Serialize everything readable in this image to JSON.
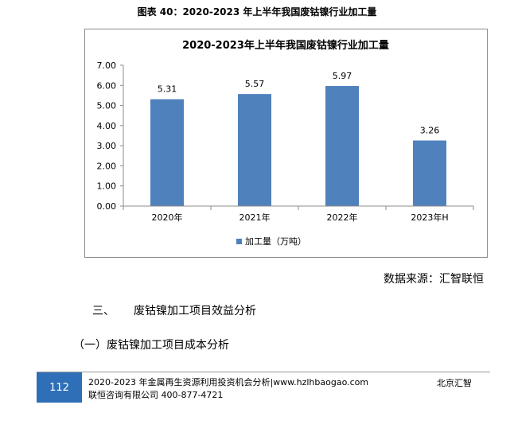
{
  "figure_caption": "图表 40：2020-2023 年上半年我国废钴镍行业加工量",
  "chart_data": {
    "type": "bar",
    "title": "2020-2023年上半年我国废钴镍行业加工量",
    "categories": [
      "2020年",
      "2021年",
      "2022年",
      "2023年H"
    ],
    "series": [
      {
        "name": "加工量（万吨）",
        "values": [
          5.31,
          5.57,
          5.97,
          3.26
        ]
      }
    ],
    "data_labels": [
      "5.31",
      "5.57",
      "5.97",
      "3.26"
    ],
    "y_ticks": [
      "0.00",
      "1.00",
      "2.00",
      "3.00",
      "4.00",
      "5.00",
      "6.00",
      "7.00"
    ],
    "ylim": [
      0,
      7
    ],
    "grid": false,
    "legend_position": "bottom",
    "bar_color": "#4f81bd"
  },
  "source_text": "数据来源：汇智联恒",
  "section": {
    "number": "三、",
    "title": "废钴镍加工项目效益分析"
  },
  "subsection": "（一）废钴镍加工项目成本分析",
  "footer": {
    "page_number": "112",
    "line1": "2020-2023 年金属再生资源利用投资机会分析|www.hzlhbaogao.com",
    "line2": "联恒咨询有限公司  400-877-4721",
    "right": "北京汇智",
    "accent_color": "#2f6fb7"
  }
}
